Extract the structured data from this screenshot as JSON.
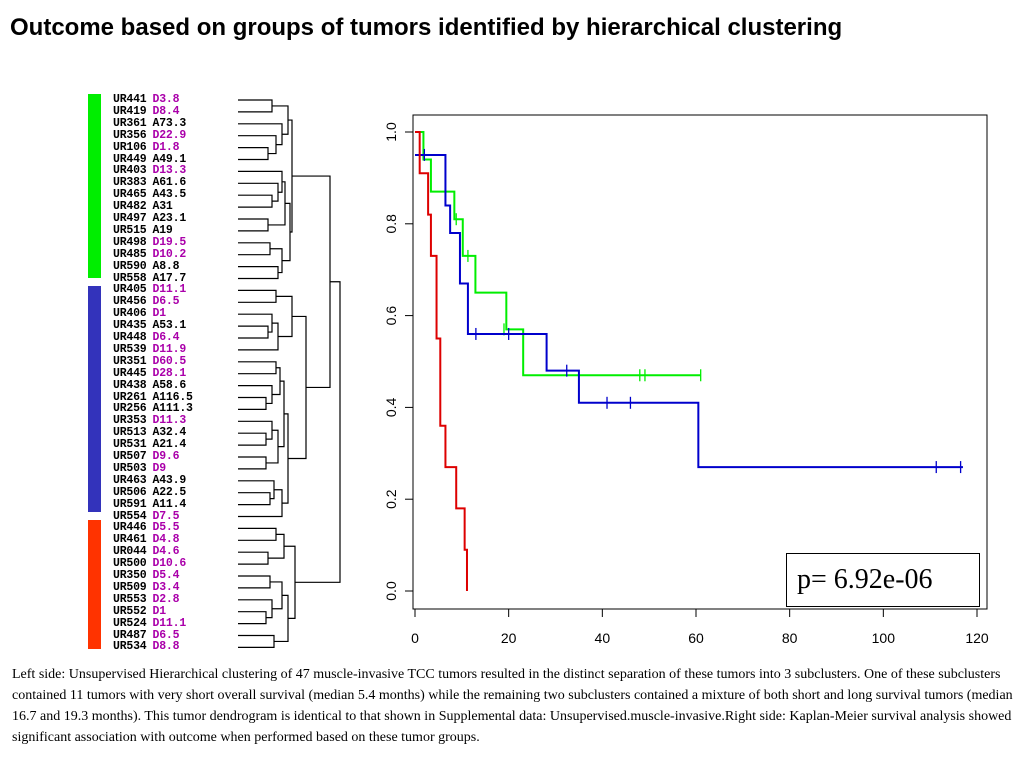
{
  "title": "Outcome based  on groups of tumors identified by hierarchical clustering",
  "dendrogram": {
    "samples": [
      {
        "id": "UR441",
        "label": "D3.8",
        "group": "green"
      },
      {
        "id": "UR419",
        "label": "D8.4",
        "group": "green"
      },
      {
        "id": "UR361",
        "label": "A73.3",
        "group": "green"
      },
      {
        "id": "UR356",
        "label": "D22.9",
        "group": "green"
      },
      {
        "id": "UR106",
        "label": "D1.8",
        "group": "green"
      },
      {
        "id": "UR449",
        "label": "A49.1",
        "group": "green"
      },
      {
        "id": "UR403",
        "label": "D13.3",
        "group": "green"
      },
      {
        "id": "UR383",
        "label": "A61.6",
        "group": "green"
      },
      {
        "id": "UR465",
        "label": "A43.5",
        "group": "green"
      },
      {
        "id": "UR482",
        "label": "A31",
        "group": "green"
      },
      {
        "id": "UR497",
        "label": "A23.1",
        "group": "green"
      },
      {
        "id": "UR515",
        "label": "A19",
        "group": "green"
      },
      {
        "id": "UR498",
        "label": "D19.5",
        "group": "green"
      },
      {
        "id": "UR485",
        "label": "D10.2",
        "group": "green"
      },
      {
        "id": "UR590",
        "label": "A8.8",
        "group": "green"
      },
      {
        "id": "UR558",
        "label": "A17.7",
        "group": "green"
      },
      {
        "id": "UR405",
        "label": "D11.1",
        "group": "blue"
      },
      {
        "id": "UR456",
        "label": "D6.5",
        "group": "blue"
      },
      {
        "id": "UR406",
        "label": "D1",
        "group": "blue"
      },
      {
        "id": "UR435",
        "label": "A53.1",
        "group": "blue"
      },
      {
        "id": "UR448",
        "label": "D6.4",
        "group": "blue"
      },
      {
        "id": "UR539",
        "label": "D11.9",
        "group": "blue"
      },
      {
        "id": "UR351",
        "label": "D60.5",
        "group": "blue"
      },
      {
        "id": "UR445",
        "label": "D28.1",
        "group": "blue"
      },
      {
        "id": "UR438",
        "label": "A58.6",
        "group": "blue"
      },
      {
        "id": "UR261",
        "label": "A116.5",
        "group": "blue"
      },
      {
        "id": "UR256",
        "label": "A111.3",
        "group": "blue"
      },
      {
        "id": "UR353",
        "label": "D11.3",
        "group": "blue"
      },
      {
        "id": "UR513",
        "label": "A32.4",
        "group": "blue"
      },
      {
        "id": "UR531",
        "label": "A21.4",
        "group": "blue"
      },
      {
        "id": "UR507",
        "label": "D9.6",
        "group": "blue"
      },
      {
        "id": "UR503",
        "label": "D9",
        "group": "blue"
      },
      {
        "id": "UR463",
        "label": "A43.9",
        "group": "blue"
      },
      {
        "id": "UR506",
        "label": "A22.5",
        "group": "blue"
      },
      {
        "id": "UR591",
        "label": "A11.4",
        "group": "blue"
      },
      {
        "id": "UR554",
        "label": "D7.5",
        "group": "blue"
      },
      {
        "id": "UR446",
        "label": "D5.5",
        "group": "red"
      },
      {
        "id": "UR461",
        "label": "D4.8",
        "group": "red"
      },
      {
        "id": "UR044",
        "label": "D4.6",
        "group": "red"
      },
      {
        "id": "UR500",
        "label": "D10.6",
        "group": "red"
      },
      {
        "id": "UR350",
        "label": "D5.4",
        "group": "red"
      },
      {
        "id": "UR509",
        "label": "D3.4",
        "group": "red"
      },
      {
        "id": "UR553",
        "label": "D2.8",
        "group": "red"
      },
      {
        "id": "UR552",
        "label": "D1",
        "group": "red"
      },
      {
        "id": "UR524",
        "label": "D11.1",
        "group": "red"
      },
      {
        "id": "UR487",
        "label": "D6.5",
        "group": "red"
      },
      {
        "id": "UR534",
        "label": "D8.8",
        "group": "red"
      }
    ],
    "colors": {
      "green": "#00ee00",
      "blue": "#3333bb",
      "red": "#ff3300",
      "D": "#aa00aa",
      "A": "#000000"
    }
  },
  "chart_data": {
    "type": "line",
    "title": "",
    "xlabel": "",
    "ylabel": "",
    "xlim": [
      0,
      120
    ],
    "ylim": [
      0,
      1.0
    ],
    "x_ticks": [
      0,
      20,
      40,
      60,
      80,
      100,
      120
    ],
    "y_ticks": [
      0.0,
      0.2,
      0.4,
      0.6,
      0.8,
      1.0
    ],
    "y_tick_labels": [
      "0.0",
      "0.2",
      "0.4",
      "0.6",
      "0.8",
      "1.0"
    ],
    "series": [
      {
        "color": "#00ee00",
        "x": [
          0,
          1.8,
          3.4,
          8.4,
          10.2,
          12.9,
          19.5,
          23.1,
          61
        ],
        "y": [
          1.0,
          0.94,
          0.87,
          0.81,
          0.73,
          0.65,
          0.57,
          0.47,
          0.47
        ],
        "censored": [
          [
            8.8,
            0.81
          ],
          [
            11.3,
            0.73
          ],
          [
            19.0,
            0.57
          ],
          [
            48.0,
            0.47
          ],
          [
            49.1,
            0.47
          ],
          [
            61.0,
            0.47
          ]
        ]
      },
      {
        "color": "#0000cc",
        "x": [
          0,
          1,
          6.5,
          7.5,
          9.6,
          11.3,
          28.1,
          35.0,
          60.5,
          117
        ],
        "y": [
          0.95,
          0.95,
          0.84,
          0.78,
          0.67,
          0.56,
          0.48,
          0.41,
          0.27,
          0.27
        ],
        "censored": [
          [
            2.0,
            0.95
          ],
          [
            13.0,
            0.56
          ],
          [
            20.0,
            0.56
          ],
          [
            32.4,
            0.48
          ],
          [
            41.0,
            0.41
          ],
          [
            46.0,
            0.41
          ],
          [
            111.3,
            0.27
          ],
          [
            116.5,
            0.27
          ]
        ]
      },
      {
        "color": "#dd0000",
        "x": [
          0,
          1.0,
          2.8,
          3.4,
          4.6,
          5.4,
          6.5,
          8.8,
          10.6,
          11.1
        ],
        "y": [
          1.0,
          0.91,
          0.82,
          0.73,
          0.55,
          0.36,
          0.27,
          0.18,
          0.09,
          0.0
        ],
        "censored": []
      }
    ]
  },
  "p_value": "p= 6.92e-06",
  "caption": "Left side: Unsupervised Hierarchical clustering of 47 muscle-invasive TCC tumors resulted in the distinct separation of these tumors into 3 subclusters. One of these subclusters contained 11 tumors with very short overall survival (median 5.4 months) while the remaining two subclusters contained a mixture of both short and long survival tumors (median 16.7 and 19.3 months). This tumor dendrogram is identical to that shown in Supplemental data: Unsupervised.muscle-invasive.Right side: Kaplan-Meier survival analysis showed significant association with outcome when performed based on these tumor groups."
}
